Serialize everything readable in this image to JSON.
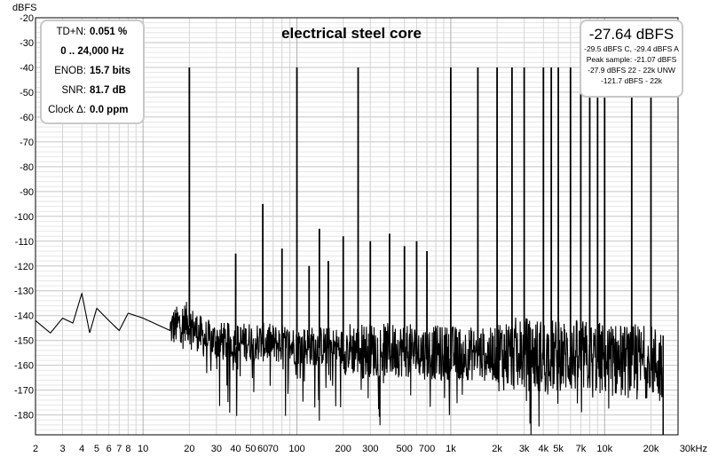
{
  "chart_data": {
    "type": "line",
    "title": "electrical steel core",
    "ylabel": "dBFS",
    "xlabel": "",
    "xunit": "kHz",
    "xscale": "log",
    "xlim": [
      2,
      30000
    ],
    "ylim": [
      -188,
      -20
    ],
    "grid": true,
    "x_tick_labels": [
      {
        "value": 2,
        "label": "2"
      },
      {
        "value": 3,
        "label": "3"
      },
      {
        "value": 4,
        "label": "4"
      },
      {
        "value": 5,
        "label": "5"
      },
      {
        "value": 6,
        "label": "6"
      },
      {
        "value": 7,
        "label": "7"
      },
      {
        "value": 8,
        "label": "8"
      },
      {
        "value": 10,
        "label": "10"
      },
      {
        "value": 20,
        "label": "20"
      },
      {
        "value": 30,
        "label": "30"
      },
      {
        "value": 40,
        "label": "40"
      },
      {
        "value": 50,
        "label": "50"
      },
      {
        "value": 60,
        "label": "60"
      },
      {
        "value": 70,
        "label": "70"
      },
      {
        "value": 100,
        "label": "100"
      },
      {
        "value": 200,
        "label": "200"
      },
      {
        "value": 300,
        "label": "300"
      },
      {
        "value": 500,
        "label": "500"
      },
      {
        "value": 700,
        "label": "700"
      },
      {
        "value": 1000,
        "label": "1k"
      },
      {
        "value": 2000,
        "label": "2k"
      },
      {
        "value": 3000,
        "label": "3k"
      },
      {
        "value": 4000,
        "label": "4k"
      },
      {
        "value": 5000,
        "label": "5k"
      },
      {
        "value": 7000,
        "label": "7k"
      },
      {
        "value": 10000,
        "label": "10k"
      },
      {
        "value": 20000,
        "label": "20k"
      },
      {
        "value": 30000,
        "label": "30kHz"
      }
    ],
    "y_ticks": [
      -20,
      -30,
      -40,
      -50,
      -60,
      -70,
      -80,
      -90,
      -100,
      -110,
      -120,
      -130,
      -140,
      -150,
      -160,
      -170,
      -180
    ],
    "noise_floor": {
      "x": [
        2,
        2.5,
        3,
        3.5,
        4,
        4.5,
        5,
        6,
        7,
        8,
        10,
        15,
        19,
        25,
        30,
        40,
        50,
        70,
        100,
        150,
        200,
        300,
        500,
        700,
        1000,
        2000,
        3000,
        5000,
        7000,
        10000,
        15000,
        20000,
        24000
      ],
      "y": [
        -142,
        -147,
        -141,
        -143,
        -131,
        -147,
        -137,
        -142,
        -146,
        -139,
        -141,
        -146,
        -143,
        -150,
        -151,
        -152,
        -151,
        -152,
        -153,
        -153,
        -154,
        -155,
        -155,
        -156,
        -156,
        -157,
        -157,
        -158,
        -158,
        -159,
        -160,
        -160,
        -161
      ]
    },
    "peaks": {
      "x": [
        20,
        40,
        60,
        80,
        100,
        120,
        140,
        160,
        200,
        250,
        300,
        400,
        500,
        600,
        700,
        1000,
        1500,
        2000,
        2500,
        3000,
        4000,
        4500,
        5000,
        6000,
        7000,
        8000,
        9000,
        10000,
        15000,
        20000
      ],
      "y": [
        -40,
        -115,
        -95,
        -113,
        -40,
        -120,
        -105,
        -118,
        -108,
        -40,
        -110,
        -107,
        -112,
        -110,
        -114,
        -40,
        -40,
        -40,
        -40,
        -40,
        -40,
        -40,
        -40,
        -40,
        -40,
        -40,
        -40,
        -40,
        -40,
        -40
      ]
    }
  },
  "stats": {
    "tdn_label": "TD+N:",
    "tdn_value": "0.051 %",
    "range": "0 .. 24,000 Hz",
    "enob_label": "ENOB:",
    "enob_value": "15.7 bits",
    "snr_label": "SNR:",
    "snr_value": "81.7 dB",
    "clock_label": "Clock Δ:",
    "clock_value": "0.0 ppm"
  },
  "level": {
    "main": "-27.64 dBFS",
    "lines": [
      "-29.5 dBFS C, -29.4 dBFS A",
      "Peak sample: -21.07 dBFS",
      "-27.9 dBFS 22 - 22k UNW",
      "-121.7 dBFS - 22k"
    ]
  }
}
